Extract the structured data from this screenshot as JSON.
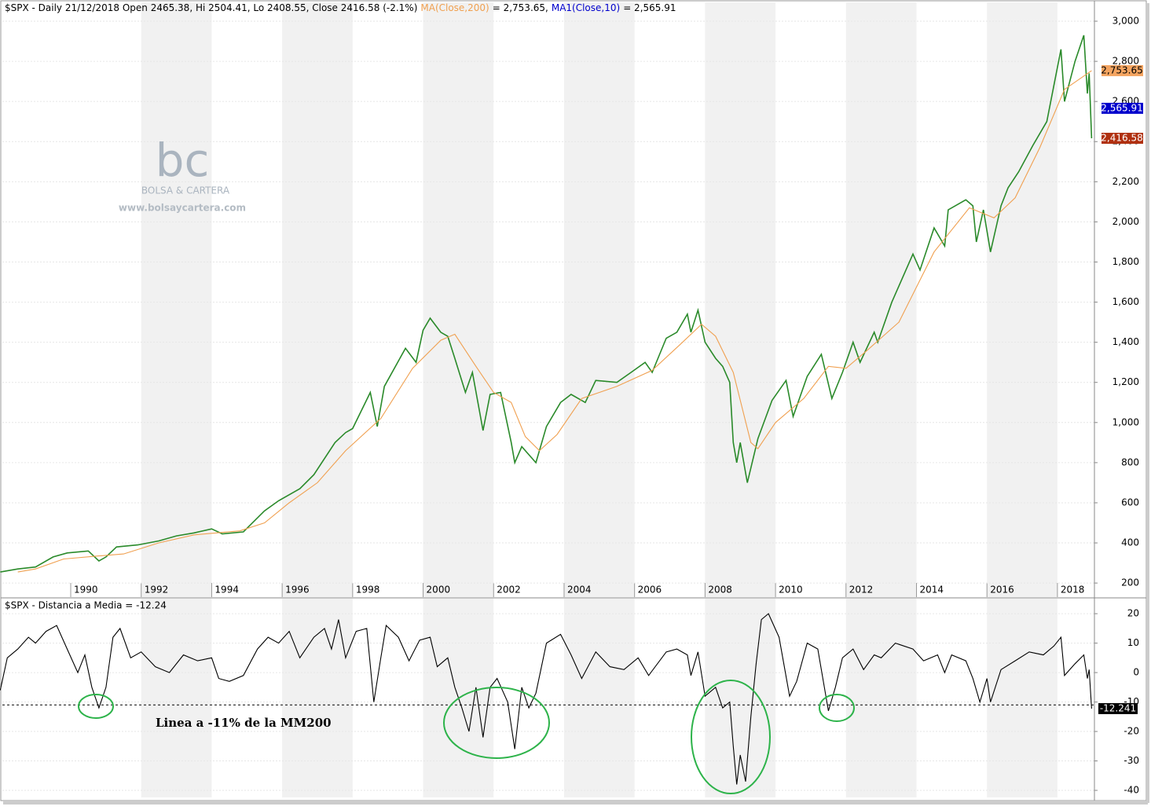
{
  "chart_data": [
    {
      "type": "line",
      "title_parts": [
        {
          "text": "$SPX - Daily 21/12/2018 Open 2465.38, Hi 2504.41, Lo 2408.55, Close 2416.58 (-2.1%)",
          "color": "#000000"
        },
        {
          "text": "MA(Close,200)",
          "color": "#f0a050"
        },
        {
          "text": "= 2,753.65,",
          "color": "#000000"
        },
        {
          "text": "MA1(Close,10)",
          "color": "#0000cc"
        },
        {
          "text": "= 2,565.91",
          "color": "#000000"
        }
      ],
      "watermark": [
        "bc",
        "BOLSA & CARTERA",
        "www.bolsaycartera.com"
      ],
      "xlim": [
        1988.06,
        2019.05
      ],
      "xticks": [
        1990,
        1992,
        1994,
        1996,
        1998,
        2000,
        2002,
        2004,
        2006,
        2008,
        2010,
        2012,
        2014,
        2016,
        2018
      ],
      "ylim": [
        130,
        3094
      ],
      "yticks": [
        200,
        400,
        600,
        800,
        {
          "value": 1000,
          "label": "1,000"
        },
        {
          "value": 1200,
          "label": "1,200"
        },
        {
          "value": 1400,
          "label": "1,400"
        },
        {
          "value": 1600,
          "label": "1,600"
        },
        {
          "value": 1800,
          "label": "1,800"
        },
        {
          "value": 2000,
          "label": "2,000"
        },
        {
          "value": 2200,
          "label": "2,200"
        },
        {
          "value": 2400,
          "label": "2,400"
        },
        {
          "value": 2600,
          "label": "2,600"
        },
        {
          "value": 2800,
          "label": "2,800"
        },
        {
          "value": 3000,
          "label": "3,000"
        }
      ],
      "grid": true,
      "series": [
        {
          "name": "$SPX",
          "color": "#2a8a2a",
          "x": [
            1988.0,
            1988.5,
            1989.0,
            1989.5,
            1989.9,
            1990.5,
            1990.8,
            1991.0,
            1991.3,
            1991.9,
            1992.5,
            1993.0,
            1993.5,
            1994.0,
            1994.3,
            1994.9,
            1995.5,
            1995.9,
            1996.5,
            1996.9,
            1997.5,
            1997.8,
            1998.0,
            1998.5,
            1998.7,
            1998.9,
            1999.5,
            1999.8,
            2000.0,
            2000.2,
            2000.5,
            2000.7,
            2000.9,
            2001.2,
            2001.4,
            2001.7,
            2001.9,
            2002.2,
            2002.5,
            2002.6,
            2002.8,
            2003.2,
            2003.5,
            2003.9,
            2004.2,
            2004.6,
            2004.9,
            2005.5,
            2005.9,
            2006.3,
            2006.5,
            2006.9,
            2007.2,
            2007.5,
            2007.6,
            2007.8,
            2008.0,
            2008.3,
            2008.5,
            2008.7,
            2008.8,
            2008.9,
            2009.0,
            2009.2,
            2009.5,
            2009.9,
            2010.3,
            2010.5,
            2010.9,
            2011.3,
            2011.6,
            2011.9,
            2012.2,
            2012.4,
            2012.8,
            2012.9,
            2013.3,
            2013.9,
            2014.1,
            2014.5,
            2014.8,
            2014.9,
            2015.4,
            2015.6,
            2015.7,
            2015.9,
            2016.1,
            2016.4,
            2016.6,
            2016.9,
            2017.3,
            2017.7,
            2017.9,
            2018.1,
            2018.2,
            2018.5,
            2018.75,
            2018.85,
            2018.9,
            2018.97
          ],
          "values": [
            255,
            270,
            280,
            330,
            350,
            360,
            310,
            330,
            380,
            390,
            410,
            435,
            450,
            470,
            445,
            455,
            560,
            610,
            670,
            740,
            900,
            950,
            970,
            1150,
            980,
            1180,
            1370,
            1300,
            1460,
            1520,
            1450,
            1430,
            1320,
            1150,
            1250,
            960,
            1140,
            1150,
            900,
            800,
            880,
            800,
            980,
            1100,
            1140,
            1100,
            1210,
            1200,
            1250,
            1300,
            1250,
            1420,
            1450,
            1540,
            1450,
            1560,
            1400,
            1320,
            1280,
            1200,
            900,
            800,
            900,
            700,
            920,
            1110,
            1210,
            1030,
            1230,
            1340,
            1120,
            1250,
            1400,
            1300,
            1450,
            1400,
            1600,
            1840,
            1760,
            1970,
            1880,
            2060,
            2110,
            2080,
            1900,
            2060,
            1850,
            2080,
            2170,
            2250,
            2380,
            2500,
            2680,
            2860,
            2600,
            2800,
            2930,
            2640,
            2740,
            2416.58
          ]
        },
        {
          "name": "MA(Close,200)",
          "color": "#f0a050",
          "x": [
            1988.5,
            1989.0,
            1989.8,
            1990.8,
            1991.5,
            1992.5,
            1993.5,
            1994.8,
            1995.5,
            1996.2,
            1997.0,
            1997.8,
            1998.8,
            1999.7,
            2000.5,
            2000.9,
            2001.5,
            2002.0,
            2002.5,
            2002.9,
            2003.3,
            2003.8,
            2004.5,
            2005.5,
            2006.5,
            2007.3,
            2007.9,
            2008.3,
            2008.8,
            2009.3,
            2009.5,
            2010.0,
            2010.8,
            2011.5,
            2012.0,
            2012.6,
            2013.5,
            2014.5,
            2015.5,
            2016.2,
            2016.8,
            2017.5,
            2018.2,
            2018.97
          ],
          "values": [
            255,
            270,
            320,
            335,
            345,
            400,
            440,
            460,
            500,
            600,
            700,
            860,
            1020,
            1270,
            1410,
            1440,
            1280,
            1150,
            1100,
            930,
            860,
            940,
            1120,
            1180,
            1260,
            1390,
            1490,
            1430,
            1250,
            900,
            870,
            1000,
            1120,
            1280,
            1270,
            1360,
            1500,
            1850,
            2070,
            2020,
            2120,
            2370,
            2660,
            2753.65
          ]
        }
      ],
      "price_tags": [
        {
          "value": 2753.65,
          "label": "2,753.65",
          "color": "#f4a460"
        },
        {
          "value": 2565.91,
          "label": "2,565.91",
          "color": "#0000cc"
        },
        {
          "value": 2416.58,
          "label": "2,416.58",
          "color": "#b03010"
        }
      ]
    },
    {
      "type": "line",
      "title": "$SPX - Distancia a Media = -12.24",
      "annotation": "Linea a -11% de la MM200",
      "xlim": [
        1988.06,
        2019.05
      ],
      "ylim": [
        -42.4,
        25.1
      ],
      "yticks": [
        20,
        10,
        0,
        -10,
        -20,
        -30,
        -40
      ],
      "grid": true,
      "level": -11,
      "last_value": -12.241,
      "series": [
        {
          "name": "Distancia a Media",
          "color": "#000000",
          "x": [
            1988.0,
            1988.2,
            1988.5,
            1988.8,
            1989.0,
            1989.3,
            1989.6,
            1989.9,
            1990.2,
            1990.4,
            1990.6,
            1990.8,
            1991.0,
            1991.2,
            1991.4,
            1991.7,
            1992.0,
            1992.4,
            1992.8,
            1993.2,
            1993.6,
            1994.0,
            1994.2,
            1994.5,
            1994.9,
            1995.3,
            1995.6,
            1995.9,
            1996.2,
            1996.5,
            1996.9,
            1997.2,
            1997.4,
            1997.6,
            1997.8,
            1998.1,
            1998.4,
            1998.6,
            1998.8,
            1998.95,
            1999.3,
            1999.6,
            1999.9,
            2000.2,
            2000.4,
            2000.7,
            2000.9,
            2001.1,
            2001.3,
            2001.5,
            2001.7,
            2001.9,
            2002.1,
            2002.4,
            2002.6,
            2002.8,
            2003.0,
            2003.2,
            2003.5,
            2003.9,
            2004.2,
            2004.5,
            2004.9,
            2005.3,
            2005.7,
            2006.1,
            2006.4,
            2006.9,
            2007.2,
            2007.5,
            2007.6,
            2007.8,
            2008.0,
            2008.3,
            2008.5,
            2008.7,
            2008.8,
            2008.9,
            2009.0,
            2009.15,
            2009.3,
            2009.45,
            2009.6,
            2009.8,
            2010.1,
            2010.4,
            2010.6,
            2010.9,
            2011.2,
            2011.5,
            2011.7,
            2011.9,
            2012.2,
            2012.5,
            2012.8,
            2013.0,
            2013.4,
            2013.9,
            2014.2,
            2014.6,
            2014.8,
            2015.0,
            2015.4,
            2015.6,
            2015.8,
            2016.0,
            2016.1,
            2016.4,
            2016.8,
            2017.2,
            2017.6,
            2017.9,
            2018.1,
            2018.2,
            2018.5,
            2018.75,
            2018.85,
            2018.9,
            2018.97
          ],
          "values": [
            -6,
            5,
            8,
            12,
            10,
            14,
            16,
            8,
            0,
            6,
            -5,
            -12,
            -5,
            12,
            15,
            5,
            7,
            2,
            0,
            6,
            4,
            5,
            -2,
            -3,
            -1,
            8,
            12,
            10,
            14,
            5,
            12,
            15,
            8,
            18,
            5,
            14,
            15,
            -10,
            5,
            16,
            12,
            4,
            11,
            12,
            2,
            5,
            -5,
            -12,
            -20,
            -5,
            -22,
            -5,
            -2,
            -10,
            -26,
            -5,
            -12,
            -7,
            10,
            13,
            6,
            -2,
            7,
            2,
            1,
            5,
            -1,
            7,
            8,
            6,
            -1,
            7,
            -8,
            -5,
            -12,
            -10,
            -25,
            -38,
            -28,
            -37,
            -15,
            3,
            18,
            20,
            12,
            -8,
            -3,
            10,
            8,
            -13,
            -5,
            5,
            8,
            1,
            6,
            5,
            10,
            8,
            4,
            6,
            0,
            6,
            4,
            -2,
            -10,
            -2,
            -10,
            1,
            4,
            7,
            6,
            9,
            12,
            -1,
            3,
            6,
            -2,
            1,
            -12.24
          ]
        }
      ]
    }
  ]
}
